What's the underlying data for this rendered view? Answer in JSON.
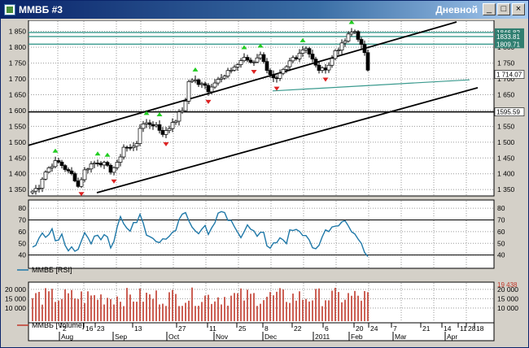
{
  "window": {
    "title": "ММВБ #3",
    "period": "Дневной",
    "buttons": {
      "minimize": "_",
      "maximize": "□",
      "close": "×"
    }
  },
  "price_panel": {
    "axis_ticks": [
      "1 850",
      "1 800",
      "1 750",
      "1 700",
      "1 650",
      "1 600",
      "1 550",
      "1 500",
      "1 450",
      "1 400",
      "1 350"
    ],
    "tick_values": [
      1850,
      1800,
      1750,
      1700,
      1650,
      1600,
      1550,
      1500,
      1450,
      1400,
      1350
    ],
    "range": [
      1335,
      1880
    ],
    "price_labels": [
      {
        "text": "1846.82",
        "value": 1846.82,
        "color": "#2f7e70"
      },
      {
        "text": "1833.81",
        "value": 1833.81,
        "color": "#2f7e70"
      },
      {
        "text": "1809.71",
        "value": 1809.71,
        "color": "#2f7e70"
      },
      {
        "text": "1 714.07",
        "value": 1714.07,
        "color": "#ffffff"
      },
      {
        "text": "1595.59",
        "value": 1595.59,
        "color": "#ffffff"
      }
    ],
    "horizontal_levels": [
      1846.82,
      1833.81,
      1809.71,
      1595.59
    ]
  },
  "rsi_panel": {
    "legend": "ММВБ [RSI]",
    "axis_ticks": [
      "80",
      "70",
      "60",
      "50",
      "40"
    ],
    "tick_values": [
      80,
      70,
      60,
      50,
      40
    ],
    "levels": [
      70,
      40
    ],
    "range": [
      30,
      85
    ]
  },
  "volume_panel": {
    "legend": "ММВБ [Volume]",
    "axis_ticks": [
      "20 000",
      "15 000",
      "10 000"
    ],
    "tick_values": [
      20000,
      15000,
      10000
    ],
    "range": [
      3000,
      23000
    ],
    "last_label": "19 438"
  },
  "date_axis": {
    "days": [
      "2",
      "16",
      "23",
      "13",
      "27",
      "11",
      "25",
      "8",
      "22",
      "6",
      "20",
      "24",
      "7",
      "21",
      "14",
      "28",
      "11",
      "18"
    ],
    "months": [
      "Aug",
      "Sep",
      "Oct",
      "Nov",
      "Dec",
      "2011",
      "Feb",
      "Mar",
      "Apr"
    ]
  },
  "chart_data": {
    "type": "candlestick",
    "instrument": "ММВБ",
    "timeframe": "Дневной",
    "close_path": [
      [
        0,
        1345
      ],
      [
        8,
        1360
      ],
      [
        14,
        1400
      ],
      [
        22,
        1425
      ],
      [
        30,
        1440
      ],
      [
        37,
        1425
      ],
      [
        44,
        1405
      ],
      [
        50,
        1395
      ],
      [
        56,
        1360
      ],
      [
        64,
        1410
      ],
      [
        72,
        1430
      ],
      [
        80,
        1438
      ],
      [
        88,
        1430
      ],
      [
        96,
        1410
      ],
      [
        104,
        1430
      ],
      [
        112,
        1485
      ],
      [
        120,
        1480
      ],
      [
        128,
        1500
      ],
      [
        134,
        1555
      ],
      [
        140,
        1565
      ],
      [
        146,
        1550
      ],
      [
        152,
        1560
      ],
      [
        158,
        1520
      ],
      [
        166,
        1545
      ],
      [
        174,
        1560
      ],
      [
        180,
        1590
      ],
      [
        186,
        1605
      ],
      [
        192,
        1690
      ],
      [
        198,
        1700
      ],
      [
        204,
        1680
      ],
      [
        210,
        1695
      ],
      [
        216,
        1660
      ],
      [
        222,
        1690
      ],
      [
        228,
        1700
      ],
      [
        234,
        1700
      ],
      [
        240,
        1720
      ],
      [
        246,
        1735
      ],
      [
        252,
        1745
      ],
      [
        258,
        1765
      ],
      [
        264,
        1760
      ],
      [
        270,
        1750
      ],
      [
        276,
        1770
      ],
      [
        282,
        1775
      ],
      [
        288,
        1730
      ],
      [
        294,
        1700
      ],
      [
        300,
        1695
      ],
      [
        306,
        1720
      ],
      [
        312,
        1735
      ],
      [
        318,
        1765
      ],
      [
        324,
        1770
      ],
      [
        330,
        1790
      ],
      [
        336,
        1800
      ],
      [
        342,
        1770
      ],
      [
        348,
        1740
      ],
      [
        354,
        1725
      ],
      [
        360,
        1735
      ],
      [
        366,
        1750
      ],
      [
        372,
        1790
      ],
      [
        378,
        1800
      ],
      [
        384,
        1820
      ],
      [
        390,
        1845
      ],
      [
        396,
        1850
      ],
      [
        402,
        1820
      ],
      [
        406,
        1790
      ],
      [
        410,
        1765
      ],
      [
        413,
        1714
      ]
    ],
    "rsi_path": [
      [
        0,
        47
      ],
      [
        6,
        52
      ],
      [
        12,
        60
      ],
      [
        18,
        55
      ],
      [
        24,
        62
      ],
      [
        30,
        50
      ],
      [
        36,
        57
      ],
      [
        42,
        44
      ],
      [
        48,
        50
      ],
      [
        54,
        40
      ],
      [
        60,
        55
      ],
      [
        66,
        60
      ],
      [
        72,
        52
      ],
      [
        78,
        60
      ],
      [
        84,
        52
      ],
      [
        90,
        56
      ],
      [
        96,
        48
      ],
      [
        102,
        58
      ],
      [
        108,
        70
      ],
      [
        114,
        62
      ],
      [
        120,
        60
      ],
      [
        126,
        68
      ],
      [
        132,
        76
      ],
      [
        138,
        62
      ],
      [
        144,
        55
      ],
      [
        150,
        55
      ],
      [
        156,
        48
      ],
      [
        162,
        56
      ],
      [
        168,
        55
      ],
      [
        174,
        60
      ],
      [
        180,
        72
      ],
      [
        186,
        80
      ],
      [
        192,
        72
      ],
      [
        198,
        62
      ],
      [
        204,
        58
      ],
      [
        210,
        64
      ],
      [
        216,
        60
      ],
      [
        222,
        66
      ],
      [
        228,
        78
      ],
      [
        234,
        80
      ],
      [
        240,
        72
      ],
      [
        246,
        70
      ],
      [
        252,
        60
      ],
      [
        258,
        54
      ],
      [
        264,
        66
      ],
      [
        270,
        60
      ],
      [
        276,
        55
      ],
      [
        282,
        63
      ],
      [
        288,
        48
      ],
      [
        294,
        47
      ],
      [
        300,
        52
      ],
      [
        306,
        55
      ],
      [
        312,
        50
      ],
      [
        318,
        64
      ],
      [
        324,
        62
      ],
      [
        330,
        60
      ],
      [
        336,
        55
      ],
      [
        342,
        50
      ],
      [
        348,
        44
      ],
      [
        354,
        54
      ],
      [
        360,
        60
      ],
      [
        366,
        64
      ],
      [
        372,
        66
      ],
      [
        378,
        69
      ],
      [
        384,
        68
      ],
      [
        390,
        65
      ],
      [
        396,
        58
      ],
      [
        402,
        52
      ],
      [
        408,
        45
      ],
      [
        413,
        35
      ]
    ]
  }
}
